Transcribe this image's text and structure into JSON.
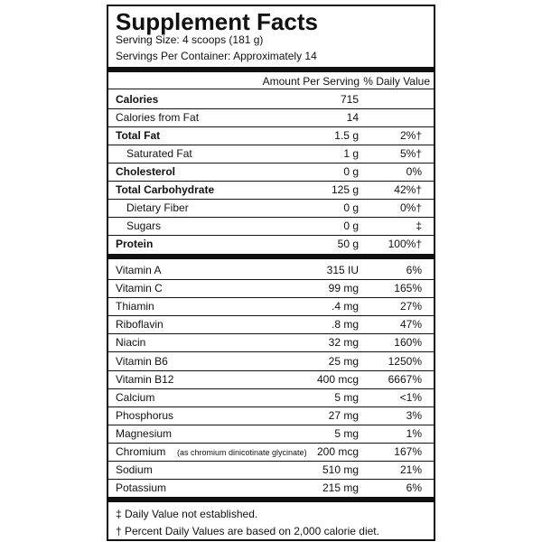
{
  "header": {
    "title": "Supplement Facts",
    "serving_size": "Serving Size: 4 scoops (181 g)",
    "servings_per_container": "Servings Per Container: Approximately 14"
  },
  "columns": {
    "amount": "Amount Per Serving",
    "daily_value": "% Daily Value"
  },
  "macros": [
    {
      "name": "Calories",
      "amount": "715",
      "bold": true
    },
    {
      "name": "Calories from Fat",
      "amount": "14"
    },
    {
      "name": "Total Fat",
      "amount": "1.5 g",
      "dv": "2%†",
      "bold": true
    },
    {
      "name": "Saturated Fat",
      "amount": "1 g",
      "dv": "5%†",
      "indent": true
    },
    {
      "name": "Cholesterol",
      "amount": "0 g",
      "dv": "0%",
      "bold": true
    },
    {
      "name": "Total Carbohydrate",
      "amount": "125 g",
      "dv": "42%†",
      "bold": true
    },
    {
      "name": "Dietary Fiber",
      "amount": "0 g",
      "dv": "0%†",
      "indent": true
    },
    {
      "name": "Sugars",
      "amount": "0 g",
      "dv": "‡",
      "indent": true
    },
    {
      "name": "Protein",
      "amount": "50 g",
      "dv": "100%†",
      "bold": true
    }
  ],
  "micros": [
    {
      "name": "Vitamin A",
      "amount": "315 IU",
      "dv": "6%"
    },
    {
      "name": "Vitamin C",
      "amount": "99 mg",
      "dv": "165%"
    },
    {
      "name": "Thiamin",
      "amount": ".4 mg",
      "dv": "27%"
    },
    {
      "name": "Riboflavin",
      "amount": ".8 mg",
      "dv": "47%"
    },
    {
      "name": "Niacin",
      "amount": "32 mg",
      "dv": "160%"
    },
    {
      "name": "Vitamin B6",
      "amount": "25 mg",
      "dv": "1250%"
    },
    {
      "name": "Vitamin B12",
      "amount": "400 mcg",
      "dv": "6667%"
    },
    {
      "name": "Calcium",
      "amount": "5 mg",
      "dv": "<1%"
    },
    {
      "name": "Phosphorus",
      "amount": "27 mg",
      "dv": "3%"
    },
    {
      "name": "Magnesium",
      "amount": "5 mg",
      "dv": "1%"
    },
    {
      "name": "Chromium",
      "note": "(as chromium dinicotinate glycinate)",
      "amount": "200 mcg",
      "dv": "167%"
    },
    {
      "name": "Sodium",
      "amount": "510 mg",
      "dv": "21%"
    },
    {
      "name": "Potassium",
      "amount": "215 mg",
      "dv": "6%"
    }
  ],
  "footnotes": [
    "‡ Daily Value not established.",
    "† Percent Daily Values are based on 2,000 calorie diet."
  ]
}
